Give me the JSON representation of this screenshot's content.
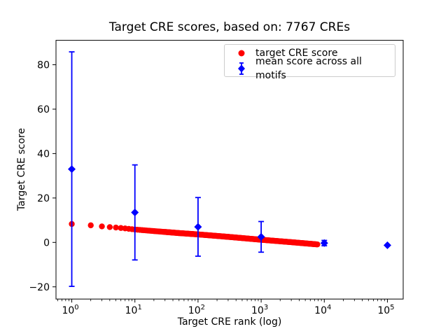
{
  "figure": {
    "title": "Target CRE scores, based on: 7767 CREs",
    "background": "#ffffff"
  },
  "axes": {
    "xlabel": "Target CRE rank (log)",
    "ylabel": "Target CRE score",
    "x_scale": "log",
    "x_tick_base": "10",
    "x_tick_exponents": [
      0,
      1,
      2,
      3,
      4,
      5
    ],
    "y_tick_values": [
      -20,
      0,
      20,
      40,
      60,
      80
    ],
    "y_tick_labels": [
      "−20",
      "0",
      "20",
      "40",
      "60",
      "80"
    ],
    "xlim_log10": [
      -0.25,
      5.25
    ],
    "ylim": [
      -25.5,
      91.0
    ],
    "grid": false
  },
  "legend": {
    "position": "upper right",
    "items": [
      {
        "label": "target CRE score",
        "marker": "circle",
        "color": "#ff0000"
      },
      {
        "label": "mean score across all motifs",
        "marker": "diamond",
        "color": "#0000ff"
      }
    ]
  },
  "chart_data": {
    "type": "scatter",
    "title": "Target CRE scores, based on: 7767 CREs",
    "xlabel": "Target CRE rank (log)",
    "ylabel": "Target CRE score",
    "x_axis": {
      "scale": "log",
      "ticks": [
        1,
        10,
        100,
        1000,
        10000,
        100000
      ],
      "minor_ticks": true
    },
    "y_axis": {
      "ticks": [
        -20,
        0,
        20,
        40,
        60,
        80
      ]
    },
    "legend_position": "upper right",
    "series": [
      {
        "name": "target CRE score",
        "marker": "circle",
        "color": "#ff0000",
        "n_points": 7767,
        "note": "7767 points forming a dense monotonically decreasing band from rank 1 to rank 7767; anchor samples below (rank, score)",
        "points": [
          [
            1,
            8.3
          ],
          [
            2,
            7.7
          ],
          [
            3,
            7.2
          ],
          [
            4,
            6.9
          ],
          [
            5,
            6.7
          ],
          [
            7,
            6.3
          ],
          [
            10,
            5.8
          ],
          [
            20,
            5.1
          ],
          [
            50,
            4.2
          ],
          [
            100,
            3.6
          ],
          [
            300,
            2.5
          ],
          [
            1000,
            1.2
          ],
          [
            3000,
            0.1
          ],
          [
            7767,
            -0.9
          ]
        ]
      },
      {
        "name": "mean score across all motifs",
        "marker": "diamond",
        "color": "#0000ff",
        "x": [
          1,
          10,
          100,
          1000,
          10000,
          100000
        ],
        "y": [
          33,
          13.5,
          7,
          2.5,
          -0.3,
          -1.3
        ],
        "yerr": [
          52.8,
          21.4,
          13.2,
          6.9,
          1.2,
          0
        ]
      }
    ]
  }
}
